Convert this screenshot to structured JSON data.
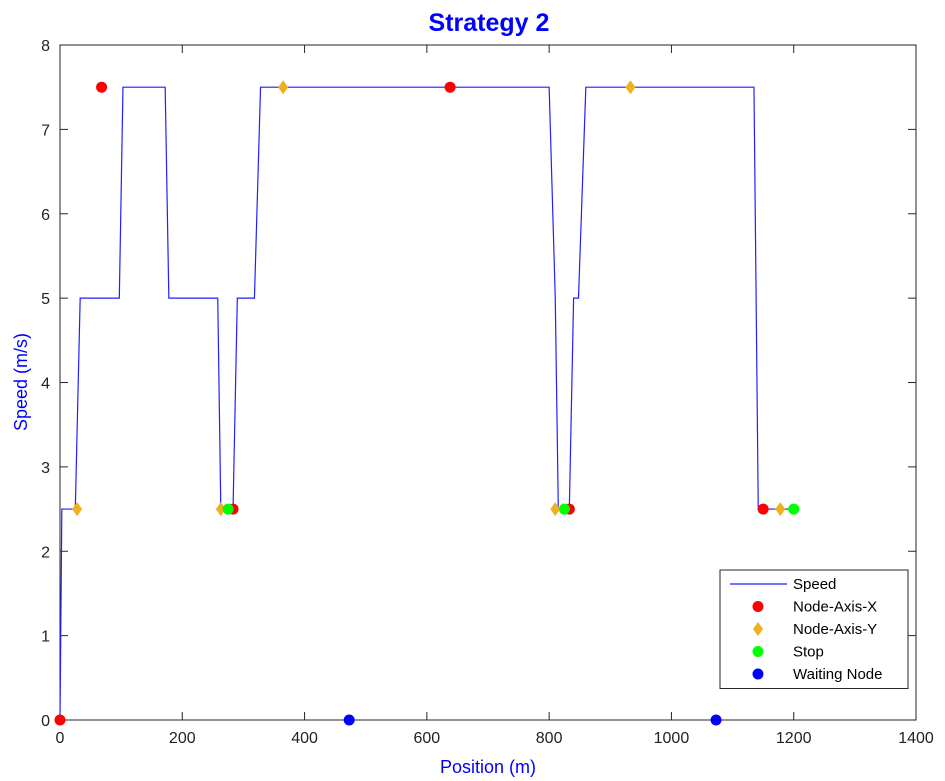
{
  "chart_data": {
    "type": "line",
    "title": "Strategy 2",
    "xlabel": "Position (m)",
    "ylabel": "Speed (m/s)",
    "xlim": [
      0,
      1400
    ],
    "ylim": [
      0,
      8
    ],
    "xticks": [
      0,
      200,
      400,
      600,
      800,
      1000,
      1200,
      1400
    ],
    "yticks": [
      0,
      1,
      2,
      3,
      4,
      5,
      6,
      7,
      8
    ],
    "grid": false,
    "legend_position": "bottom-right",
    "series": [
      {
        "name": "Speed",
        "kind": "line",
        "color": "#1f1fff",
        "x": [
          0,
          3,
          25,
          33,
          97,
          103,
          172,
          178,
          258,
          263,
          275,
          283,
          290,
          318,
          328,
          333,
          800,
          810,
          815,
          822,
          833,
          840,
          848,
          860,
          868,
          1135,
          1142,
          1150,
          1200
        ],
        "y": [
          0,
          2.5,
          2.5,
          5.0,
          5.0,
          7.5,
          7.5,
          5.0,
          5.0,
          2.5,
          2.5,
          2.5,
          5.0,
          5.0,
          7.5,
          7.5,
          7.5,
          5.0,
          2.5,
          2.5,
          2.5,
          5.0,
          5.0,
          7.5,
          7.5,
          7.5,
          2.5,
          2.5,
          2.5
        ]
      },
      {
        "name": "Node-Axis-X",
        "kind": "marker",
        "marker": "circle",
        "color": "#ff0000",
        "points": [
          [
            0,
            0
          ],
          [
            68,
            7.5
          ],
          [
            283,
            2.5
          ],
          [
            638,
            7.5
          ],
          [
            833,
            2.5
          ],
          [
            1150,
            2.5
          ]
        ]
      },
      {
        "name": "Node-Axis-Y",
        "kind": "marker",
        "marker": "diamond",
        "color": "#edb120",
        "points": [
          [
            28,
            2.5
          ],
          [
            263,
            2.5
          ],
          [
            365,
            7.5
          ],
          [
            810,
            2.5
          ],
          [
            933,
            7.5
          ],
          [
            1178,
            2.5
          ]
        ]
      },
      {
        "name": "Stop",
        "kind": "marker",
        "marker": "circle",
        "color": "#00ff00",
        "points": [
          [
            275,
            2.5
          ],
          [
            825,
            2.5
          ],
          [
            1200,
            2.5
          ]
        ]
      },
      {
        "name": "Waiting Node",
        "kind": "marker",
        "marker": "circle",
        "color": "#0000ff",
        "points": [
          [
            473,
            0
          ],
          [
            1073,
            0
          ]
        ]
      }
    ]
  }
}
